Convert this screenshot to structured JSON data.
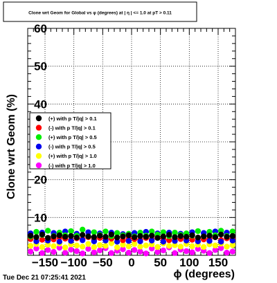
{
  "chart_data": {
    "type": "scatter",
    "title": "Clone wrt Geom for Global vs φ (degrees) at | η | <= 1.0 at pT > 0.11",
    "xlabel": "ϕ (degrees)",
    "ylabel": "Clone wrt Geom (%)",
    "xlim": [
      -180,
      180
    ],
    "ylim": [
      0,
      60
    ],
    "x_ticks": [
      -150,
      -100,
      -50,
      0,
      50,
      100,
      150
    ],
    "x_tick_labels": [
      "−150",
      "−100",
      "−50",
      "0",
      "50",
      "100",
      "150"
    ],
    "y_ticks": [
      0,
      10,
      20,
      30,
      40,
      50,
      60
    ],
    "y_tick_labels": [
      "",
      "10",
      "20",
      "30",
      "40",
      "50",
      "60"
    ],
    "grid": true,
    "legend_placement": "middle-left",
    "x": [
      -175,
      -165,
      -155,
      -145,
      -135,
      -125,
      -115,
      -105,
      -95,
      -85,
      -75,
      -65,
      -55,
      -45,
      -35,
      -25,
      -15,
      -5,
      5,
      15,
      25,
      35,
      45,
      55,
      65,
      75,
      85,
      95,
      105,
      115,
      125,
      135,
      145,
      155,
      165,
      175
    ],
    "series": [
      {
        "name": "(+) with p T/|q| > 0.1",
        "color": "#000000",
        "values": [
          5.2,
          4.8,
          5.5,
          4.6,
          5.0,
          5.3,
          4.9,
          5.1,
          4.7,
          5.4,
          5.0,
          4.8,
          5.2,
          4.9,
          5.5,
          4.7,
          5.0,
          5.3,
          4.8,
          5.1,
          4.9,
          5.2,
          4.6,
          5.0,
          5.4,
          4.8,
          5.1,
          4.9,
          5.3,
          4.7,
          5.0,
          5.2,
          4.8,
          5.5,
          4.9,
          5.1
        ]
      },
      {
        "name": "(-) with p T/|q| > 0.1",
        "color": "#ff0000",
        "values": [
          4.3,
          4.8,
          4.1,
          4.6,
          4.2,
          4.7,
          4.4,
          4.0,
          4.5,
          4.3,
          4.8,
          4.1,
          4.6,
          4.2,
          4.4,
          4.7,
          4.0,
          4.5,
          4.3,
          4.1,
          4.6,
          4.2,
          4.8,
          4.4,
          4.0,
          4.5,
          4.3,
          4.7,
          4.1,
          4.6,
          4.2,
          4.4,
          4.8,
          4.0,
          4.5,
          4.3
        ]
      },
      {
        "name": "(+) with p T/|q| > 0.5",
        "color": "#00ee00",
        "values": [
          5.0,
          6.2,
          5.4,
          6.5,
          5.1,
          6.0,
          5.3,
          6.4,
          5.2,
          6.8,
          5.0,
          6.1,
          5.4,
          6.3,
          5.1,
          5.9,
          5.3,
          5.7,
          5.0,
          6.0,
          5.2,
          6.3,
          5.5,
          6.1,
          5.1,
          6.0,
          5.4,
          5.8,
          5.2,
          6.4,
          5.0,
          6.2,
          5.3,
          6.5,
          5.1,
          6.3
        ]
      },
      {
        "name": "(-) with p T/|q| > 0.5",
        "color": "#0000ee",
        "values": [
          5.8,
          3.7,
          6.0,
          3.9,
          5.9,
          3.6,
          6.3,
          3.8,
          5.7,
          4.0,
          6.1,
          3.7,
          5.8,
          3.9,
          6.0,
          3.6,
          5.6,
          3.8,
          5.9,
          3.7,
          6.2,
          3.9,
          5.8,
          3.6,
          6.0,
          3.8,
          5.7,
          3.9,
          6.1,
          3.7,
          5.9,
          3.8,
          6.3,
          3.6,
          6.0,
          3.9
        ]
      },
      {
        "name": "(+) with p T/|q| > 1.0",
        "color": "#ffff00",
        "values": [
          2.5,
          3.0,
          2.2,
          2.8,
          2.4,
          3.1,
          2.1,
          2.9,
          2.6,
          2.3,
          3.0,
          2.2,
          2.7,
          2.5,
          3.2,
          2.1,
          2.8,
          2.4,
          3.0,
          2.3,
          2.6,
          2.9,
          2.2,
          3.1,
          2.5,
          2.7,
          2.3,
          3.0,
          2.4,
          2.8,
          2.2,
          2.9,
          2.6,
          3.1,
          2.3,
          2.7
        ]
      },
      {
        "name": "(-) with p T/|q| > 1.0",
        "color": "#ff00ff",
        "values": [
          1.0,
          1.8,
          0.6,
          1.4,
          0.9,
          2.0,
          0.7,
          1.5,
          1.1,
          0.5,
          1.7,
          0.8,
          1.3,
          1.9,
          0.6,
          1.2,
          1.6,
          0.7,
          1.4,
          1.0,
          0.5,
          1.8,
          0.9,
          1.3,
          2.1,
          0.6,
          1.5,
          1.1,
          0.8,
          1.7,
          1.2,
          0.6,
          1.4,
          1.9,
          0.7,
          1.0
        ]
      }
    ]
  },
  "timestamp": "Tue Dec 21 07:25:41 2021"
}
